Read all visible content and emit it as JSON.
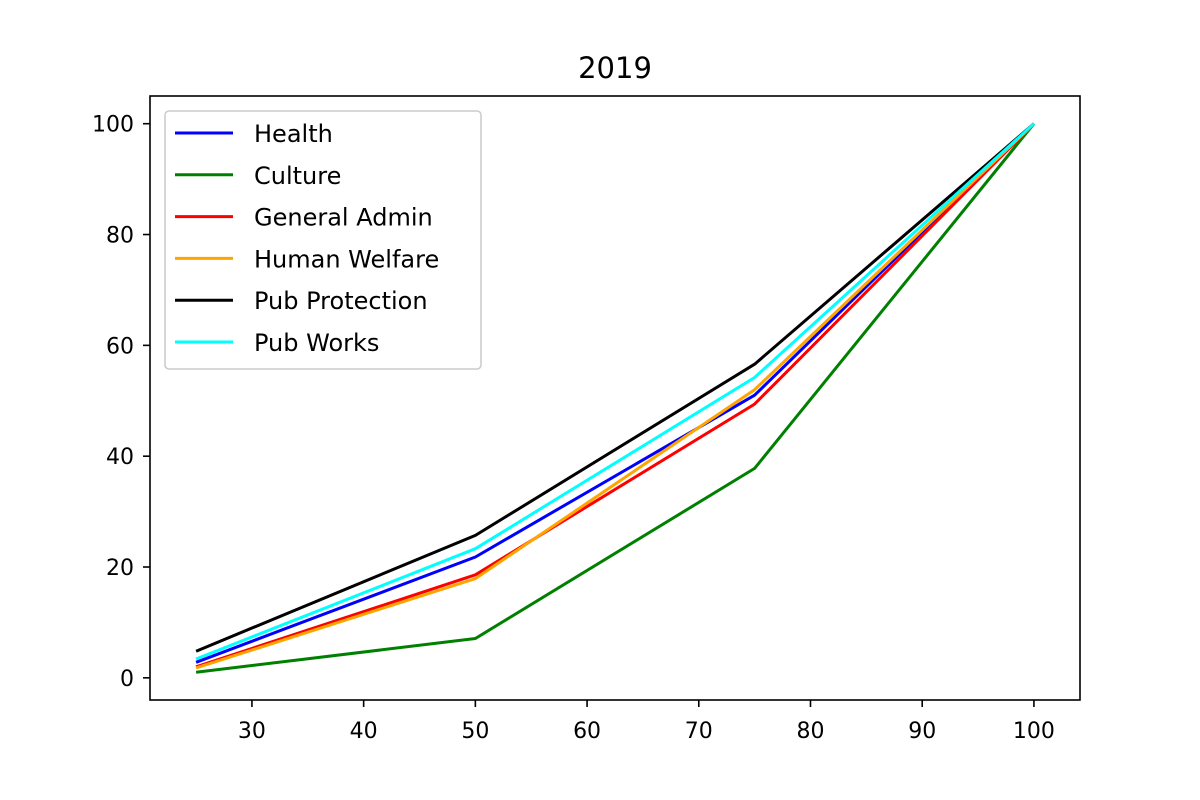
{
  "chart_data": {
    "type": "line",
    "title": "2019",
    "xlabel": "",
    "ylabel": "",
    "x": [
      25,
      50,
      75,
      100
    ],
    "xlim": [
      20.875,
      104.125
    ],
    "ylim": [
      -4,
      105
    ],
    "xticks": [
      30,
      40,
      50,
      60,
      70,
      80,
      90,
      100
    ],
    "yticks": [
      0,
      20,
      40,
      60,
      80,
      100
    ],
    "grid": false,
    "legend_position": "top-left",
    "series": [
      {
        "name": "Health",
        "color": "#0000ff",
        "values": [
          2.8,
          21.8,
          51.0,
          100
        ]
      },
      {
        "name": "Culture",
        "color": "#008000",
        "values": [
          1.0,
          7.1,
          37.8,
          100
        ]
      },
      {
        "name": "General Admin",
        "color": "#ff0000",
        "values": [
          2.0,
          18.6,
          49.4,
          100
        ]
      },
      {
        "name": "Human Welfare",
        "color": "#ffa500",
        "values": [
          1.8,
          17.9,
          52.0,
          100
        ]
      },
      {
        "name": "Pub Protection",
        "color": "#000000",
        "values": [
          4.8,
          25.7,
          56.6,
          100
        ]
      },
      {
        "name": "Pub Works",
        "color": "#00ffff",
        "values": [
          3.4,
          23.3,
          54.2,
          100
        ]
      }
    ]
  }
}
